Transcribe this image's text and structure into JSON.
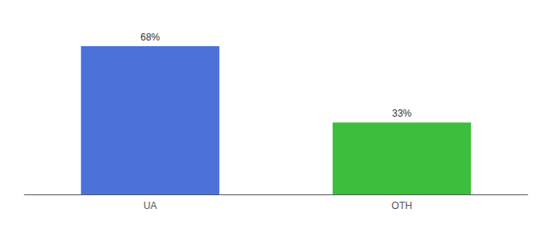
{
  "chart_data": {
    "type": "bar",
    "categories": [
      "UA",
      "OTH"
    ],
    "values": [
      68,
      33
    ],
    "value_labels": [
      "68%",
      "33%"
    ],
    "colors": [
      "#4a72d9",
      "#3dbe3d"
    ],
    "ylim": [
      0,
      78
    ],
    "data_labels": true,
    "tick_labels": "x",
    "grid": false
  }
}
